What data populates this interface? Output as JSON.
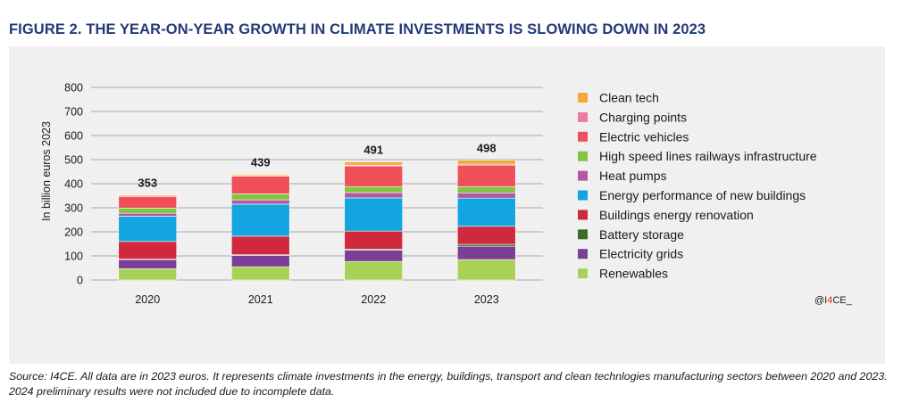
{
  "figure_title": "FIGURE 2. THE YEAR-ON-YEAR GROWTH IN CLIMATE INVESTMENTS IS SLOWING DOWN IN 2023",
  "source_note": "Source: I4CE. All data are in 2023 euros. It represents climate investments in the energy, buildings, transport and clean technlogies manufacturing sectors between 2020 and 2023. 2024 preliminary results were not included due to incomplete data.",
  "watermark": {
    "prefix": "@I",
    "highlight": "4",
    "suffix": "CE_",
    "highlight_color": "#e2231a"
  },
  "chart_data": {
    "type": "bar",
    "stacked": true,
    "title": "",
    "xlabel": "",
    "ylabel": "In billion euros 2023",
    "ylim": [
      0,
      800
    ],
    "yticks": [
      0,
      100,
      200,
      300,
      400,
      500,
      600,
      700,
      800
    ],
    "grid": true,
    "legend_position": "right",
    "categories": [
      "2020",
      "2021",
      "2022",
      "2023"
    ],
    "totals": [
      "353",
      "439",
      "491",
      "498"
    ],
    "series": [
      {
        "name": "Renewables",
        "color": "#a8d155",
        "values": [
          47,
          55,
          77,
          85
        ]
      },
      {
        "name": "Electricity grids",
        "color": "#7b3f98",
        "values": [
          38,
          47,
          47,
          55
        ]
      },
      {
        "name": "Battery storage",
        "color": "#3d6b2c",
        "values": [
          2,
          3,
          4,
          8
        ]
      },
      {
        "name": "Buildings energy renovation",
        "color": "#d0293e",
        "values": [
          73,
          77,
          75,
          75
        ]
      },
      {
        "name": "Energy performance of new buildings",
        "color": "#12a5e0",
        "values": [
          105,
          133,
          138,
          117
        ]
      },
      {
        "name": "Heat pumps",
        "color": "#b05aa5",
        "values": [
          12,
          18,
          22,
          22
        ]
      },
      {
        "name": "High speed lines railways infrastructure",
        "color": "#83c441",
        "values": [
          22,
          25,
          25,
          25
        ]
      },
      {
        "name": "Electric vehicles",
        "color": "#f0505a",
        "values": [
          48,
          74,
          86,
          90
        ]
      },
      {
        "name": "Charging points",
        "color": "#ef79a5",
        "values": [
          1,
          2,
          3,
          4
        ]
      },
      {
        "name": "Clean tech",
        "color": "#f5a93d",
        "values": [
          5,
          5,
          14,
          17
        ]
      }
    ]
  }
}
